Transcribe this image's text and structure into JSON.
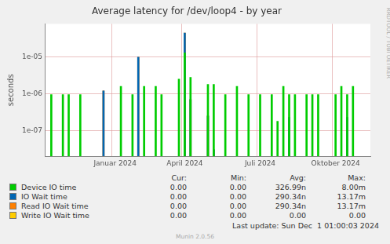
{
  "chart_data": {
    "type": "bar",
    "title": "Average latency for /dev/loop4 - by year",
    "y_label": "seconds",
    "log": "y",
    "grid": true,
    "legend": "bottom",
    "ylim": [
      2e-08,
      8e-05
    ],
    "yticks": [
      {
        "value": 1e-07,
        "label": "1e-07"
      },
      {
        "value": 1e-06,
        "label": "1e-06"
      },
      {
        "value": 1e-05,
        "label": "1e-05"
      }
    ],
    "categories": [
      null,
      null,
      null,
      null,
      null,
      null,
      null,
      null,
      null,
      null,
      null,
      null,
      "Januar 2024",
      null,
      null,
      null,
      null,
      null,
      null,
      null,
      null,
      null,
      null,
      null,
      "April 2024",
      null,
      null,
      null,
      null,
      null,
      null,
      null,
      null,
      null,
      null,
      null,
      null,
      "Juli 2024",
      null,
      null,
      null,
      null,
      null,
      null,
      null,
      null,
      null,
      null,
      null,
      null,
      "Oktober 2024",
      null,
      null,
      null,
      null,
      null,
      null
    ],
    "stats_columns": [
      "Cur:",
      "Min:",
      "Avg:",
      "Max:"
    ],
    "series": [
      {
        "name": "Device IO time",
        "color": "#00cc00",
        "stats": [
          "0.00",
          "0.00",
          "326.99n",
          "8.00m"
        ],
        "values": [
          null,
          9.5e-07,
          null,
          9.5e-07,
          9.5e-07,
          null,
          9.5e-07,
          null,
          null,
          null,
          null,
          null,
          null,
          1.6e-06,
          null,
          9.5e-07,
          null,
          1.6e-06,
          null,
          1.6e-06,
          9.5e-07,
          null,
          null,
          2.5e-06,
          1.3e-05,
          2.8e-06,
          null,
          null,
          1.8e-06,
          1.8e-06,
          null,
          9.5e-07,
          null,
          1.6e-06,
          null,
          9.5e-07,
          null,
          9.5e-07,
          null,
          9.5e-07,
          1.8e-07,
          1.6e-06,
          9.5e-07,
          9.5e-07,
          null,
          9.5e-07,
          9.5e-07,
          9.5e-07,
          null,
          null,
          9.5e-07,
          1.6e-06,
          9.5e-07,
          1.6e-06,
          null,
          null,
          null
        ]
      },
      {
        "name": "IO Wait time",
        "color": "#0066b3",
        "stats": [
          "0.00",
          "0.00",
          "290.34n",
          "13.17m"
        ],
        "values": [
          null,
          null,
          null,
          null,
          null,
          null,
          null,
          null,
          null,
          null,
          1.2e-06,
          null,
          null,
          null,
          null,
          null,
          1e-05,
          null,
          null,
          null,
          null,
          null,
          null,
          null,
          4.5e-05,
          7e-07,
          null,
          null,
          2.5e-07,
          3e-08,
          null,
          null,
          null,
          null,
          null,
          null,
          null,
          null,
          null,
          null,
          null,
          null,
          2.3e-07,
          null,
          null,
          null,
          null,
          null,
          null,
          null,
          null,
          null,
          2.3e-07,
          null,
          null,
          null,
          null
        ]
      },
      {
        "name": "Read IO Wait time",
        "color": "#ff8000",
        "stats": [
          "0.00",
          "0.00",
          "290.34n",
          "13.17m"
        ],
        "values": [
          null,
          null,
          null,
          null,
          null,
          null,
          null,
          null,
          null,
          null,
          1.2e-06,
          null,
          null,
          null,
          null,
          null,
          1e-05,
          null,
          null,
          null,
          null,
          null,
          null,
          null,
          4.5e-05,
          7e-07,
          null,
          null,
          2.5e-07,
          3e-08,
          null,
          null,
          null,
          null,
          null,
          null,
          null,
          null,
          null,
          null,
          null,
          null,
          2.3e-07,
          null,
          null,
          null,
          null,
          null,
          null,
          null,
          null,
          null,
          2.3e-07,
          null,
          null,
          null,
          null
        ]
      },
      {
        "name": "Write IO Wait time",
        "color": "#ffcc00",
        "stats": [
          "0.00",
          "0.00",
          "0.00",
          "0.00"
        ],
        "values": [
          null,
          null,
          null,
          null,
          null,
          null,
          null,
          null,
          null,
          null,
          null,
          null,
          null,
          null,
          null,
          null,
          null,
          null,
          null,
          null,
          null,
          null,
          null,
          null,
          null,
          null,
          null,
          null,
          null,
          null,
          null,
          null,
          null,
          null,
          null,
          null,
          null,
          null,
          null,
          null,
          null,
          null,
          null,
          null,
          null,
          null,
          null,
          null,
          null,
          null,
          null,
          null,
          null,
          null,
          null,
          null,
          null
        ]
      }
    ],
    "side_text": "RRDTOOL / TOBI OETIKER",
    "footer": "Last update: Sun Dec  1 01:00:03 2024",
    "credit": "Munin 2.0.56"
  }
}
